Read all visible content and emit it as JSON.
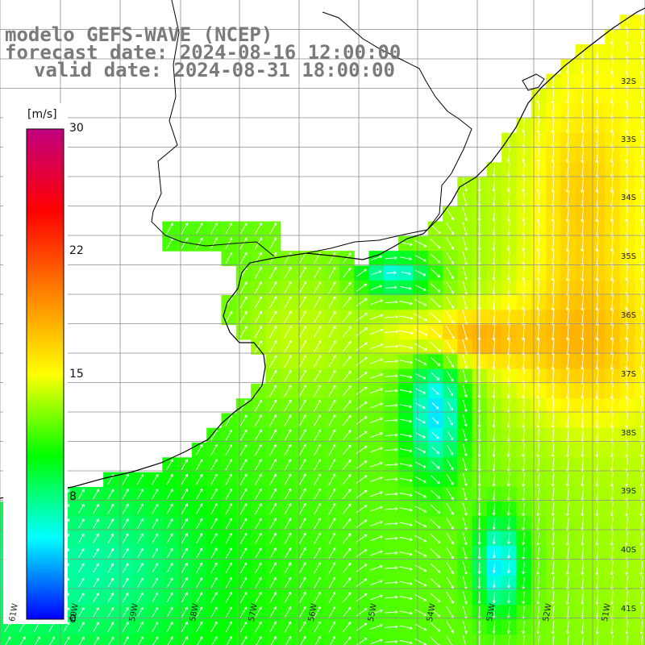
{
  "header": {
    "line1": "modelo GEFS-WAVE (NCEP)",
    "line2": "forecast date: 2024-08-16 12:00:00",
    "line3": "valid date: 2024-08-31 18:00:00"
  },
  "colorbar": {
    "unit": "[m/s]",
    "ticks": [
      "30",
      "22",
      "15",
      "8",
      "0"
    ],
    "colors": [
      "#0000ff",
      "#00ffff",
      "#00ff00",
      "#ffff00",
      "#ff8000",
      "#ff0000",
      "#c00080"
    ]
  },
  "map": {
    "lat_labels": [
      "32S",
      "33S",
      "34S",
      "35S",
      "36S",
      "37S",
      "38S",
      "39S",
      "40S",
      "41S"
    ],
    "lon_labels": [
      "61W",
      "60W",
      "59W",
      "58W",
      "57W",
      "56W",
      "55W",
      "54W",
      "53W",
      "52W",
      "51W"
    ],
    "land_color": "#ffffff",
    "grid_color": "#8c8c8c"
  }
}
